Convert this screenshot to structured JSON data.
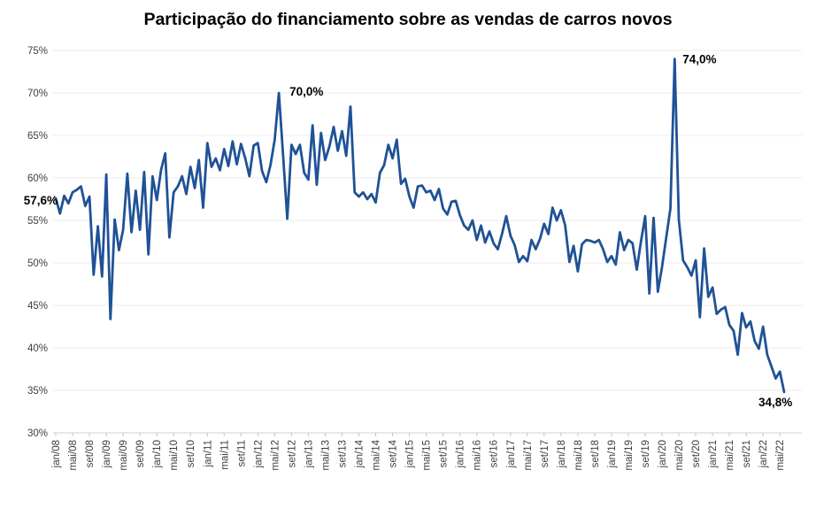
{
  "title": "Participação do financiamento sobre as vendas de carros novos",
  "colors": {
    "line": "#1f5296",
    "grid": "#ebebeb",
    "axis_line": "#d2d2d2",
    "tick_mark": "#c4c4c4",
    "tick_label": "#3f3f3f",
    "annotation": "#000000",
    "background": "#ffffff"
  },
  "chart_data": {
    "type": "line",
    "title": "Participação do financiamento sobre as vendas de carros novos",
    "x_start": "jan/08",
    "x_end": "jun/22",
    "x_frequency": "monthly",
    "x_tick_every_n_months": 4,
    "x_tick_labels": [
      "jan/08",
      "mai/08",
      "set/08",
      "jan/09",
      "mai/09",
      "set/09",
      "jan/10",
      "mai/10",
      "set/10",
      "jan/11",
      "mai/11",
      "set/11",
      "jan/12",
      "mai/12",
      "set/12",
      "jan/13",
      "mai/13",
      "set/13",
      "jan/14",
      "mai/14",
      "set/14",
      "jan/15",
      "mai/15",
      "set/15",
      "jan/16",
      "mai/16",
      "set/16",
      "jan/17",
      "mai/17",
      "set/17",
      "jan/18",
      "mai/18",
      "set/18",
      "jan/19",
      "mai/19",
      "set/19",
      "jan/20",
      "mai/20",
      "set/20",
      "jan/21",
      "mai/21",
      "set/21",
      "jan/22",
      "mai/22"
    ],
    "y_ticks": [
      "75%",
      "70%",
      "65%",
      "60%",
      "55%",
      "50%",
      "45%",
      "40%",
      "35%",
      "30%"
    ],
    "ylim": [
      30,
      75
    ],
    "grid": "horizontal",
    "legend": "none",
    "values": [
      57.6,
      55.8,
      57.9,
      57.0,
      58.3,
      58.6,
      59.0,
      56.7,
      57.8,
      48.6,
      54.3,
      48.4,
      60.4,
      43.4,
      55.1,
      51.5,
      53.9,
      60.5,
      53.6,
      58.5,
      53.9,
      60.7,
      51.0,
      60.2,
      57.4,
      60.9,
      62.9,
      53.0,
      58.3,
      59.0,
      60.2,
      58.1,
      61.3,
      58.8,
      62.1,
      56.5,
      64.1,
      61.3,
      62.3,
      60.9,
      63.4,
      61.4,
      64.3,
      61.6,
      64.0,
      62.3,
      60.2,
      63.8,
      64.1,
      60.8,
      59.5,
      61.5,
      64.5,
      70.0,
      62.6,
      55.2,
      63.9,
      62.8,
      63.9,
      60.6,
      59.8,
      66.2,
      59.2,
      65.3,
      62.1,
      63.7,
      66.0,
      63.2,
      65.5,
      62.6,
      68.4,
      58.3,
      57.8,
      58.3,
      57.5,
      58.1,
      57.1,
      60.6,
      61.5,
      63.9,
      62.3,
      64.5,
      59.3,
      59.9,
      57.8,
      56.5,
      59.0,
      59.1,
      58.3,
      58.5,
      57.4,
      58.7,
      56.4,
      55.7,
      57.2,
      57.3,
      55.6,
      54.4,
      53.9,
      55.0,
      52.7,
      54.4,
      52.4,
      53.7,
      52.3,
      51.6,
      53.4,
      55.5,
      53.2,
      52.1,
      50.1,
      50.8,
      50.2,
      52.7,
      51.6,
      52.8,
      54.6,
      53.4,
      56.5,
      55.0,
      56.2,
      54.4,
      50.1,
      52.0,
      49.0,
      52.2,
      52.7,
      52.6,
      52.4,
      52.7,
      51.6,
      50.1,
      50.8,
      49.8,
      53.6,
      51.5,
      52.7,
      52.3,
      49.2,
      52.5,
      55.5,
      46.4,
      55.3,
      46.6,
      49.5,
      53.0,
      56.4,
      74.0,
      55.1,
      50.3,
      49.5,
      48.5,
      50.3,
      43.6,
      51.7,
      46.0,
      47.1,
      44.0,
      44.5,
      44.8,
      42.7,
      42.0,
      39.2,
      44.1,
      42.4,
      43.1,
      40.8,
      39.9,
      42.5,
      39.2,
      37.8,
      36.4,
      37.2,
      34.8
    ],
    "annotations": [
      {
        "label": "57,6%",
        "point": "jan/08",
        "month_index": 0,
        "value": 57.6
      },
      {
        "label": "70,0%",
        "point": "jun/12",
        "month_index": 53,
        "value": 70.0
      },
      {
        "label": "74,0%",
        "point": "abr/20",
        "month_index": 147,
        "value": 74.0
      },
      {
        "label": "34,8%",
        "point": "jun/22",
        "month_index": 173,
        "value": 34.8
      }
    ]
  }
}
